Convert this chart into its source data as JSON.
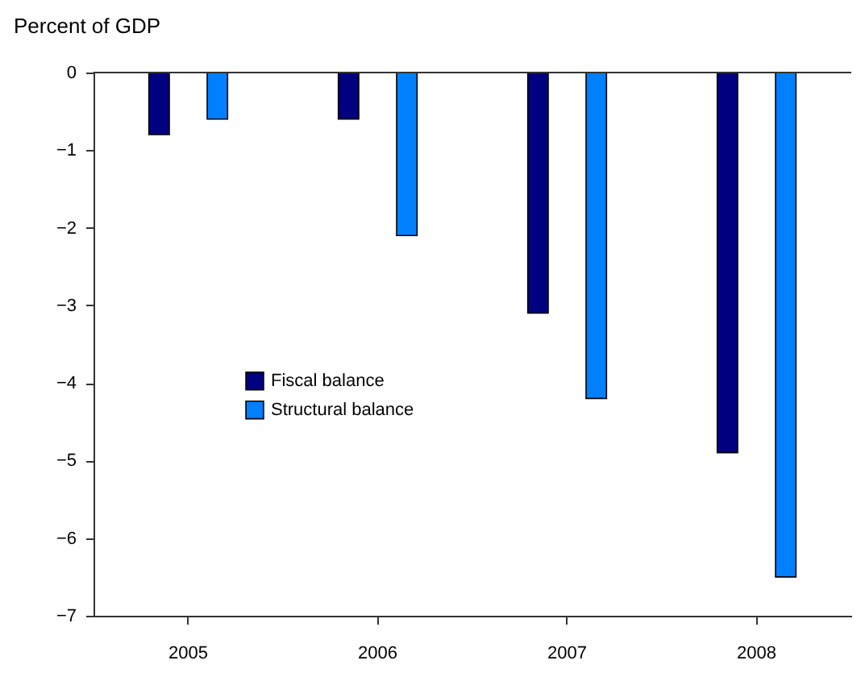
{
  "chart_data": {
    "type": "bar",
    "ylabel": "Percent of GDP",
    "categories": [
      "2005",
      "2006",
      "2007",
      "2008"
    ],
    "series": [
      {
        "name": "Fiscal balance",
        "color": "#000080",
        "values": [
          -0.8,
          -0.6,
          -3.1,
          -4.9
        ]
      },
      {
        "name": "Structural balance",
        "color": "#0080ff",
        "values": [
          -0.6,
          -2.1,
          -4.2,
          -6.5
        ]
      }
    ],
    "ylim": [
      -7,
      0
    ],
    "yticks": [
      -7,
      -6,
      -5,
      -4,
      -3,
      -2,
      -1,
      0
    ],
    "ref_lines": [
      {
        "axis": "y",
        "value": 0
      }
    ],
    "grid": false,
    "legend": "left"
  }
}
